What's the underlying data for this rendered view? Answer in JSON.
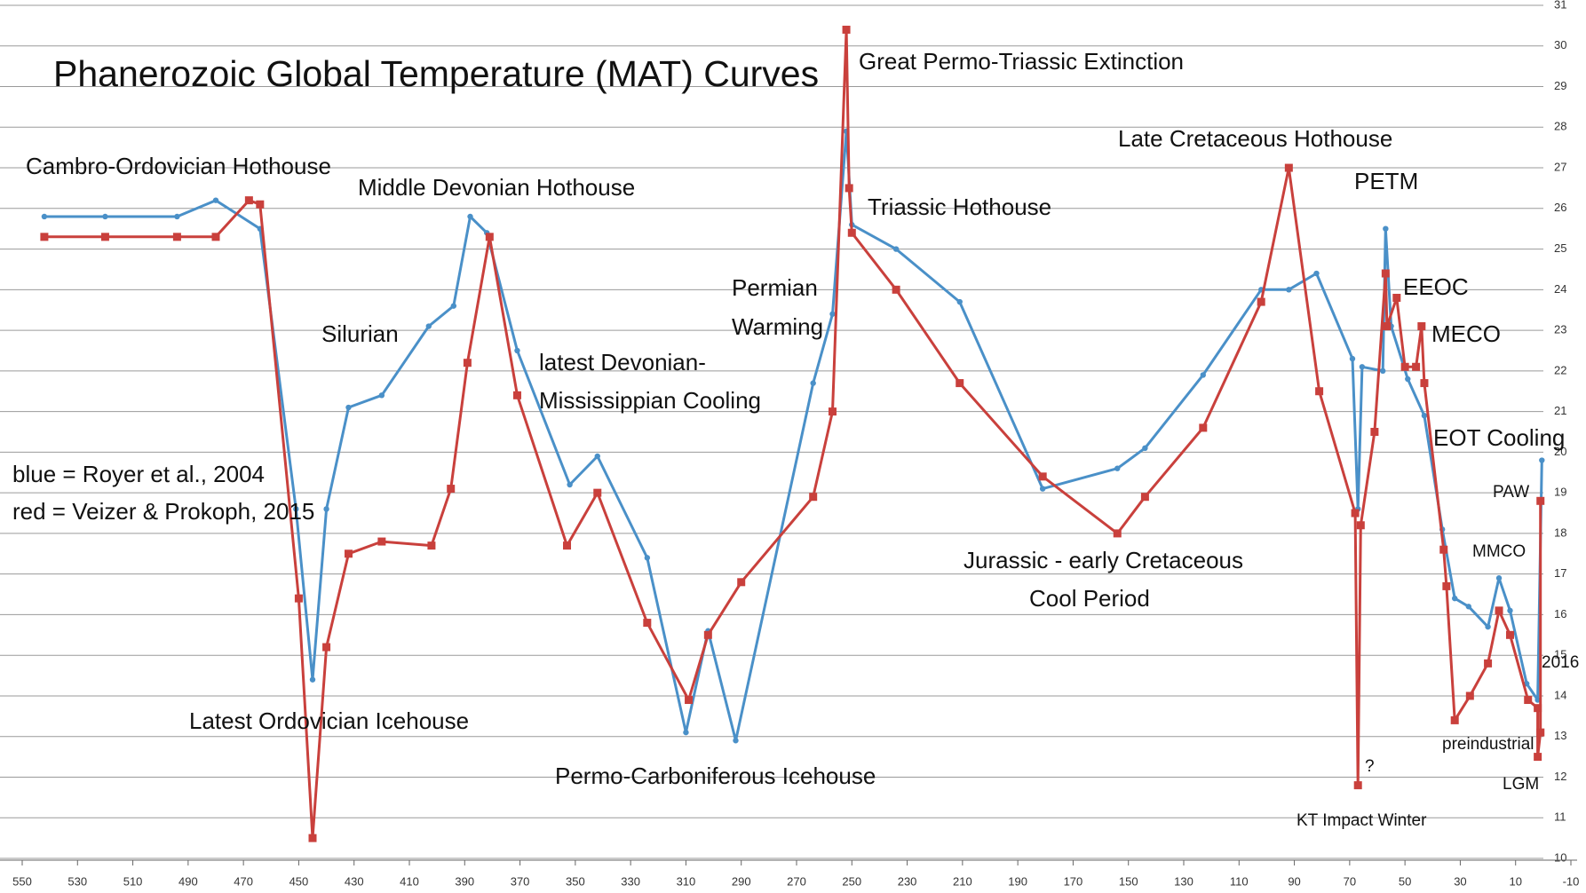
{
  "chart_data": {
    "type": "line",
    "title": "Phanerozoic Global Temperature (MAT) Curves",
    "xlim": [
      550,
      -10
    ],
    "xticks": [
      550,
      530,
      510,
      490,
      470,
      450,
      430,
      410,
      390,
      370,
      350,
      330,
      310,
      290,
      270,
      250,
      230,
      210,
      190,
      170,
      150,
      130,
      110,
      90,
      70,
      50,
      30,
      10,
      -10
    ],
    "ylim": [
      10,
      31
    ],
    "yticks": [
      10,
      11,
      12,
      13,
      14,
      15,
      16,
      17,
      18,
      19,
      20,
      21,
      22,
      23,
      24,
      25,
      26,
      27,
      28,
      29,
      30,
      31
    ],
    "grid": true,
    "series": [
      {
        "name": "blue = Royer et al., 2004",
        "color": "#4a90c8",
        "x": [
          542,
          520,
          494,
          480,
          464,
          451,
          445,
          440,
          432,
          420,
          403,
          394,
          388,
          382,
          371,
          352,
          342,
          324,
          310,
          302,
          292,
          264,
          257,
          252,
          250,
          234,
          211,
          181,
          154,
          144,
          123,
          102,
          92,
          82,
          69,
          67,
          65.5,
          58,
          57,
          55,
          49,
          43,
          36.5,
          32,
          27,
          20,
          16,
          12,
          6,
          2,
          0.5
        ],
        "values": [
          25.8,
          25.8,
          25.8,
          26.2,
          25.5,
          18.6,
          14.4,
          18.6,
          21.1,
          21.4,
          23.1,
          23.6,
          25.8,
          25.4,
          22.5,
          19.2,
          19.9,
          17.4,
          13.1,
          15.6,
          12.9,
          21.7,
          23.4,
          27.9,
          25.6,
          25.0,
          23.7,
          19.1,
          19.6,
          20.1,
          21.9,
          24.0,
          24.0,
          24.4,
          22.3,
          18.6,
          22.1,
          22.0,
          25.5,
          23.1,
          21.8,
          20.9,
          18.1,
          16.4,
          16.2,
          15.7,
          16.9,
          16.1,
          14.3,
          13.9,
          19.8
        ]
      },
      {
        "name": "red = Veizer & Prokoph, 2015",
        "color": "#c9403c",
        "x": [
          542,
          520,
          494,
          480,
          468,
          464,
          450,
          445,
          440,
          432,
          420,
          402,
          395,
          389,
          381,
          371,
          353,
          342,
          324,
          309,
          302,
          290,
          264,
          257,
          252,
          251,
          250,
          234,
          211,
          181,
          154,
          144,
          123,
          102,
          92,
          81,
          68,
          67,
          66,
          61,
          57,
          56.5,
          53,
          50,
          46,
          44,
          43,
          36,
          35,
          32,
          26.5,
          20,
          16,
          12,
          5.5,
          2,
          2,
          1,
          1
        ],
        "values": [
          25.3,
          25.3,
          25.3,
          25.3,
          26.2,
          26.1,
          16.4,
          10.5,
          15.2,
          17.5,
          17.8,
          17.7,
          19.1,
          22.2,
          25.3,
          21.4,
          17.7,
          19.0,
          15.8,
          13.9,
          15.5,
          16.8,
          18.9,
          21.0,
          30.4,
          26.5,
          25.4,
          24.0,
          21.7,
          19.4,
          18.0,
          18.9,
          20.6,
          23.7,
          27.0,
          21.5,
          18.5,
          11.8,
          18.2,
          20.5,
          24.4,
          23.1,
          23.8,
          22.1,
          22.1,
          23.1,
          21.7,
          17.6,
          16.7,
          13.4,
          14.0,
          14.8,
          16.1,
          15.5,
          13.9,
          13.7,
          12.5,
          13.1,
          18.8
        ]
      }
    ],
    "annotations": [
      "Great Permo-Triassic Extinction",
      "Cambro-Ordovician Hothouse",
      "Middle Devonian Hothouse",
      "Late Cretaceous Hothouse",
      "PETM",
      "Triassic Hothouse",
      "Permian",
      "Warming",
      "Silurian",
      "EEOC",
      "MECO",
      "latest Devonian-",
      "Mississippian Cooling",
      "EOT Cooling",
      "PAW",
      "MMCO",
      "Jurassic - early Cretaceous",
      "Cool Period",
      "2016",
      "Latest Ordovician Icehouse",
      "preindustrial",
      "?",
      "Permo-Carboniferous Icehouse",
      "LGM",
      "KT Impact Winter"
    ]
  }
}
